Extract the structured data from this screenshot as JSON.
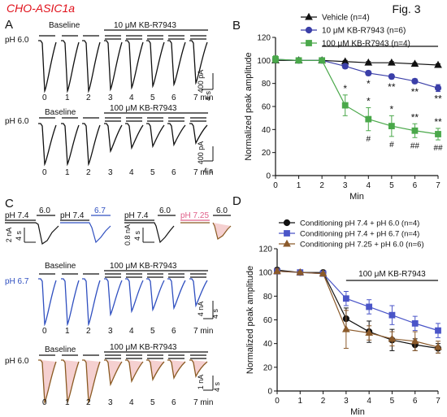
{
  "figure": {
    "cell_line": "CHO-ASIC1a",
    "fig_label": "Fig. 3",
    "colors": {
      "title_red": "#e0101a",
      "black": "#111111",
      "vehicle": "#111111",
      "kb10": "#3b3fa8",
      "kb100": "#4aa84a",
      "ph74_67": "#4a55c8",
      "ph725_60": "#8b5a2b",
      "trace_blue": "#3050c0",
      "trace_brown": "#8a5a22",
      "shade_pink": "#f5d0d0",
      "pink_label": "#e0608a"
    }
  },
  "panelA": {
    "label": "A",
    "rows": [
      {
        "ph": "pH 6.0",
        "baseline": "Baseline",
        "drug": "10 μM KB-R7943",
        "scale_y": "400 pA",
        "scale_x": "4 s"
      },
      {
        "ph": "pH 6.0",
        "baseline": "Baseline",
        "drug": "100 μM KB-R7943",
        "scale_y": "400 pA",
        "scale_x": "4 s"
      }
    ],
    "times": [
      "0",
      "1",
      "2",
      "3",
      "4",
      "5",
      "6",
      "7 min"
    ]
  },
  "panelC": {
    "label": "C",
    "protocol_labels": [
      "pH 7.4",
      "6.0",
      "pH 7.4",
      "6.7",
      "pH 7.4",
      "6.0",
      "pH 7.25",
      "6.0"
    ],
    "scale1": {
      "y": "2 nA",
      "x": "4 s"
    },
    "scale2": {
      "y": "0.8 nA",
      "x": "4 s"
    },
    "rows": [
      {
        "ph": "pH 6.7",
        "baseline": "Baseline",
        "drug": "100 μM KB-R7943",
        "scale_y": "4 nA",
        "scale_x": "4 s"
      },
      {
        "ph": "pH 6.0",
        "baseline": "Baseline",
        "drug": "100 μM KB-R7943",
        "scale_y": "1 nA",
        "scale_x": "4 s"
      }
    ],
    "times": [
      "0",
      "1",
      "2",
      "3",
      "4",
      "5",
      "6",
      "7 min"
    ]
  },
  "chart_data": [
    {
      "panel": "B",
      "type": "line",
      "xlabel": "Min",
      "ylabel": "Normalized peak amplitude",
      "xlim": [
        0,
        7
      ],
      "ylim": [
        0,
        120
      ],
      "x_ticks": [
        "0",
        "1",
        "2",
        "3",
        "4",
        "5",
        "6",
        "7"
      ],
      "y_ticks": [
        "0",
        "20",
        "40",
        "60",
        "80",
        "100",
        "120"
      ],
      "legend_position": "top-right",
      "x": [
        0,
        1,
        2,
        3,
        4,
        5,
        6,
        7
      ],
      "series": [
        {
          "name": "Vehicle (n=4)",
          "marker": "triangle",
          "values": [
            100,
            100,
            100,
            99,
            98,
            98,
            97,
            96
          ],
          "err": [
            1,
            1,
            0.5,
            1,
            1,
            1,
            1,
            1
          ]
        },
        {
          "name": "10 μM KB-R7943 (n=6)",
          "marker": "circle",
          "values": [
            101,
            100,
            100,
            95,
            89,
            86,
            82,
            76
          ],
          "err": [
            2,
            1,
            0.5,
            2,
            2,
            2,
            2,
            3
          ]
        },
        {
          "name": "100 μM KB-R7943 (n=4)",
          "marker": "square",
          "values": [
            101,
            100,
            100,
            61,
            49,
            43,
            39,
            36
          ],
          "err": [
            3,
            1,
            0.5,
            9,
            10,
            9,
            6,
            5
          ]
        }
      ],
      "annotations": {
        "sig_10": [
          {
            "x": 4,
            "text": "*"
          },
          {
            "x": 5,
            "text": "**"
          },
          {
            "x": 6,
            "text": "**"
          },
          {
            "x": 7,
            "text": "**"
          }
        ],
        "sig_100_star": [
          {
            "x": 3,
            "text": "*"
          },
          {
            "x": 4,
            "text": "*"
          },
          {
            "x": 5,
            "text": "*"
          },
          {
            "x": 6,
            "text": "**"
          },
          {
            "x": 7,
            "text": "**"
          }
        ],
        "sig_100_hash": [
          {
            "x": 4,
            "text": "#"
          },
          {
            "x": 5,
            "text": "#"
          },
          {
            "x": 6,
            "text": "##"
          },
          {
            "x": 7,
            "text": "##"
          }
        ]
      },
      "drug_bar": {
        "from": 2,
        "to": 7
      }
    },
    {
      "panel": "D",
      "type": "line",
      "xlabel": "Min",
      "ylabel": "Normalized peak amplitude",
      "xlim": [
        0,
        7
      ],
      "ylim": [
        0,
        120
      ],
      "x_ticks": [
        "0",
        "1",
        "2",
        "3",
        "4",
        "5",
        "6",
        "7"
      ],
      "y_ticks": [
        "0",
        "20",
        "40",
        "60",
        "80",
        "100",
        "120"
      ],
      "legend_position": "top",
      "x": [
        0,
        1,
        2,
        3,
        4,
        5,
        6,
        7
      ],
      "series": [
        {
          "name": "Conditioning pH 7.4 + pH 6.0 (n=4)",
          "marker": "circle",
          "values": [
            102,
            100,
            100,
            61,
            50,
            43,
            39,
            36
          ],
          "err": [
            2,
            1,
            1,
            9,
            9,
            9,
            5,
            4
          ]
        },
        {
          "name": "Conditioning pH 7.4 + pH 6.7 (n=4)",
          "marker": "square",
          "values": [
            101,
            100,
            99,
            78,
            71,
            64,
            57,
            51
          ],
          "err": [
            2,
            1,
            1,
            6,
            6,
            8,
            6,
            6
          ]
        },
        {
          "name": "Conditioning pH 7.25 + pH 6.0 (n=6)",
          "marker": "triangle",
          "values": [
            101,
            100,
            99,
            52,
            49,
            44,
            42,
            37
          ],
          "err": [
            2,
            1,
            1,
            16,
            6,
            6,
            8,
            5
          ]
        }
      ],
      "drug_label": "100 μM KB-R7943",
      "drug_bar": {
        "from": 3,
        "to": 7
      }
    }
  ]
}
